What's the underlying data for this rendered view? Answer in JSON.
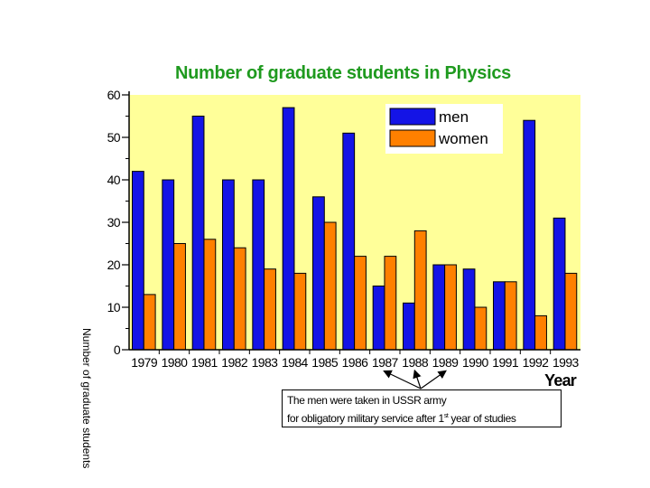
{
  "chart_data": {
    "type": "bar",
    "title": "Number of graduate students in Physics",
    "xlabel": "Year",
    "ylabel": "Number of graduate students",
    "ylim": [
      0,
      60
    ],
    "yticks": [
      "0",
      "10",
      "20",
      "30",
      "40",
      "50",
      "60"
    ],
    "categories": [
      "1979",
      "1980",
      "1981",
      "1982",
      "1983",
      "1984",
      "1985",
      "1986",
      "1987",
      "1988",
      "1989",
      "1990",
      "1991",
      "1992",
      "1993"
    ],
    "series": [
      {
        "name": "men",
        "color": "#1414e6",
        "values": [
          42,
          40,
          55,
          40,
          40,
          57,
          36,
          51,
          15,
          11,
          20,
          19,
          16,
          54,
          31
        ]
      },
      {
        "name": "women",
        "color": "#ff8000",
        "values": [
          13,
          25,
          26,
          24,
          19,
          18,
          30,
          22,
          22,
          28,
          20,
          10,
          16,
          8,
          18
        ]
      }
    ],
    "legend_position": "top-right",
    "plot_background": "#ffff99",
    "annotation": {
      "line1": "The men were taken in USSR army",
      "line2_pre": "for obligatory military service after 1",
      "line2_sup": "st",
      "line2_post": " year of studies",
      "points_to": [
        "1987",
        "1988",
        "1989"
      ]
    }
  }
}
